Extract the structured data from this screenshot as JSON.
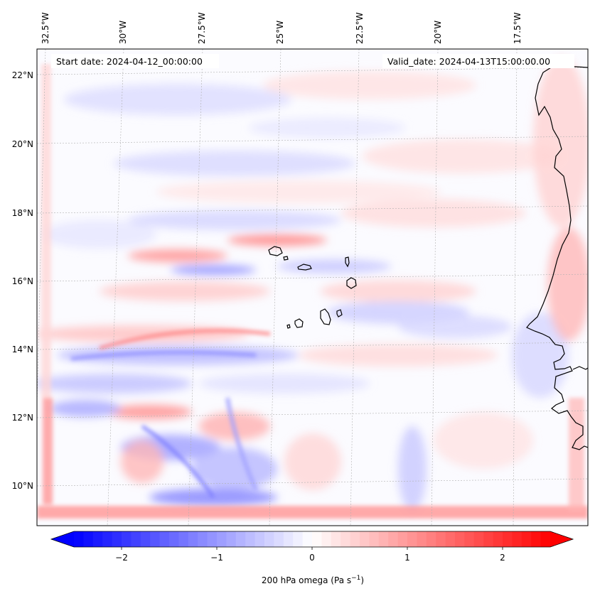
{
  "map": {
    "start_date": "Start date: 2024-04-12_00:00:00",
    "valid_date": "Valid_date: 2024-04-13T15:00:00.00",
    "lon_labels": [
      "32.5°W",
      "30°W",
      "27.5°W",
      "25°W",
      "22.5°W",
      "20°W",
      "17.5°W"
    ],
    "lat_labels": [
      "22°N",
      "20°N",
      "18°N",
      "16°N",
      "14°N",
      "12°N",
      "10°N"
    ],
    "lon_values": [
      -32.5,
      -30,
      -27.5,
      -25,
      -22.5,
      -20,
      -17.5
    ],
    "lat_values": [
      22,
      20,
      18,
      16,
      14,
      12,
      10
    ],
    "extent": {
      "lon": [
        -32.7,
        -15.5
      ],
      "lat": [
        8.9,
        22.7
      ]
    },
    "coastline_color": "#000000",
    "gridlines": true
  },
  "colorbar": {
    "label_prefix": "200 hPa omega (Pa s",
    "label_exp": "−1",
    "label_suffix": ")",
    "tick_labels": [
      "−2",
      "−1",
      "0",
      "1",
      "2"
    ],
    "tick_values": [
      -2,
      -1,
      0,
      1,
      2
    ],
    "range": [
      -2.5,
      2.5
    ],
    "extend": "both",
    "colormap": "bwr",
    "neg_color": "#0000ff",
    "mid_color": "#ffffff",
    "pos_color": "#ff0000"
  }
}
